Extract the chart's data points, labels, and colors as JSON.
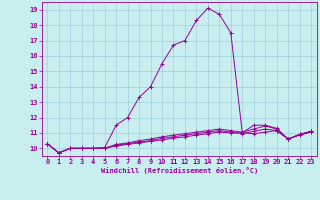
{
  "xlabel": "Windchill (Refroidissement éolien,°C)",
  "bg_color": "#c8eef0",
  "grid_color": "#a0d0d8",
  "line_color": "#990099",
  "xlim": [
    -0.5,
    23.5
  ],
  "ylim": [
    9.5,
    19.5
  ],
  "xticks": [
    0,
    1,
    2,
    3,
    4,
    5,
    6,
    7,
    8,
    9,
    10,
    11,
    12,
    13,
    14,
    15,
    16,
    17,
    18,
    19,
    20,
    21,
    22,
    23
  ],
  "yticks": [
    10,
    11,
    12,
    13,
    14,
    15,
    16,
    17,
    18,
    19
  ],
  "series": [
    [
      10.3,
      9.7,
      10.0,
      10.0,
      10.0,
      10.05,
      11.5,
      12.0,
      13.3,
      14.0,
      15.5,
      16.7,
      17.0,
      18.3,
      19.1,
      18.7,
      17.5,
      11.0,
      11.5,
      11.5,
      11.3,
      10.6,
      10.9,
      11.1
    ],
    [
      10.3,
      9.7,
      10.0,
      10.0,
      10.0,
      10.0,
      10.15,
      10.25,
      10.35,
      10.45,
      10.55,
      10.65,
      10.75,
      10.85,
      10.95,
      11.05,
      11.0,
      11.0,
      10.95,
      11.05,
      11.15,
      10.6,
      10.85,
      11.05
    ],
    [
      10.3,
      9.7,
      10.0,
      10.0,
      10.0,
      10.0,
      10.2,
      10.3,
      10.4,
      10.5,
      10.65,
      10.75,
      10.85,
      10.95,
      11.05,
      11.15,
      11.05,
      10.95,
      11.1,
      11.25,
      11.15,
      10.6,
      10.9,
      11.1
    ],
    [
      10.3,
      9.7,
      10.0,
      10.0,
      10.0,
      10.0,
      10.25,
      10.35,
      10.5,
      10.6,
      10.75,
      10.85,
      10.95,
      11.05,
      11.15,
      11.25,
      11.15,
      11.05,
      11.25,
      11.45,
      11.25,
      10.6,
      10.9,
      11.1
    ]
  ],
  "tick_fontsize": 5,
  "xlabel_fontsize": 5,
  "linewidth": 0.7,
  "markersize": 3.5
}
